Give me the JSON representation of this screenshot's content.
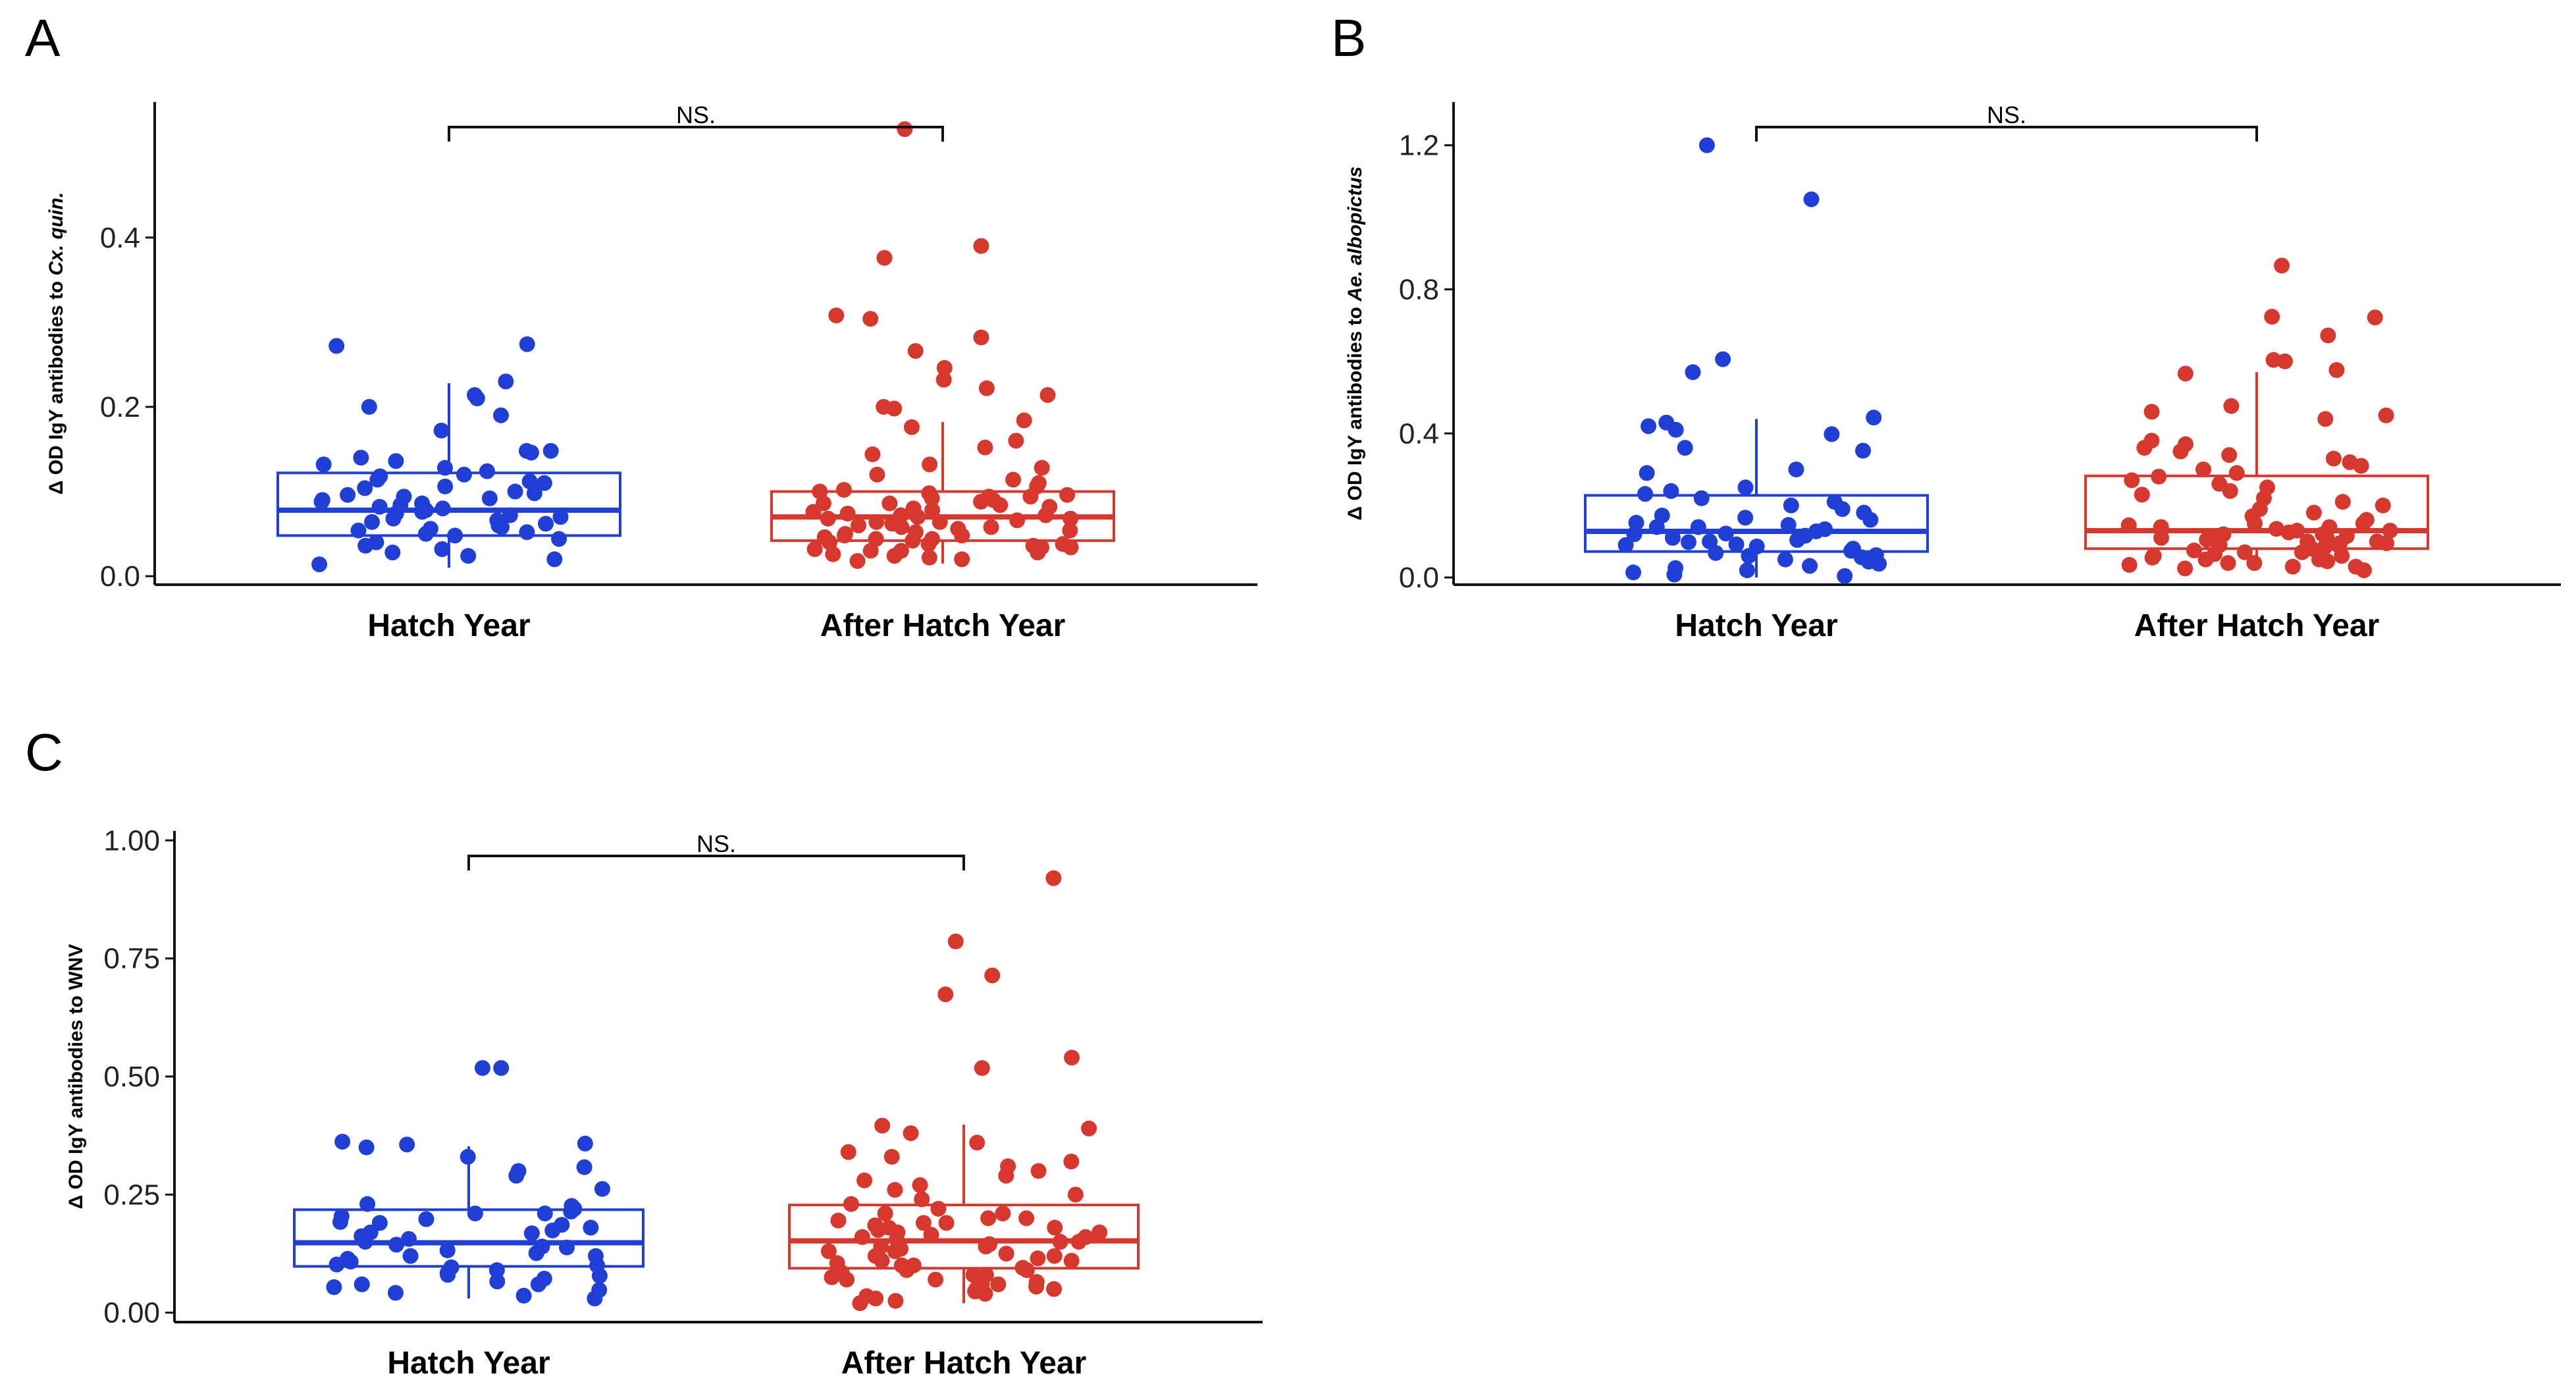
{
  "figure": {
    "panels": [
      {
        "letter": "A",
        "ylabel_parts": [
          {
            "text": "Δ OD IgY antibodies to ",
            "italic": false
          },
          {
            "text": "Cx. quin.",
            "italic": true
          }
        ],
        "sig_label": "NS.",
        "yticks": [
          "0.0",
          "0.2",
          "0.4"
        ]
      },
      {
        "letter": "B",
        "ylabel_parts": [
          {
            "text": "Δ OD IgY antibodies to ",
            "italic": false
          },
          {
            "text": "Ae. albopictus",
            "italic": true
          }
        ],
        "sig_label": "NS.",
        "yticks": [
          "0.0",
          "0.4",
          "0.8",
          "1.2"
        ]
      },
      {
        "letter": "C",
        "ylabel_parts": [
          {
            "text": "Δ OD IgY antibodies to WNV",
            "italic": false
          }
        ],
        "sig_label": "NS.",
        "yticks": [
          "0.00",
          "0.25",
          "0.50",
          "0.75",
          "1.00"
        ]
      }
    ]
  },
  "chart_data": [
    {
      "type": "box",
      "categories": [
        "Hatch Year",
        "After Hatch Year"
      ],
      "ylabel": "Δ OD IgY antibodies to Cx. quin.",
      "ylim": [
        -0.01,
        0.56
      ],
      "yticks": [
        0.0,
        0.2,
        0.4
      ],
      "annotation": "NS.",
      "colors": {
        "Hatch Year": "#1f3fd6",
        "After Hatch Year": "#d6382e"
      },
      "boxes": [
        {
          "category": "Hatch Year",
          "whisker_low": 0.01,
          "q1": 0.048,
          "median": 0.078,
          "q3": 0.122,
          "whisker_high": 0.228
        },
        {
          "category": "After Hatch Year",
          "whisker_low": 0.015,
          "q1": 0.042,
          "median": 0.07,
          "q3": 0.1,
          "whisker_high": 0.182
        }
      ],
      "points": [
        {
          "category": "Hatch Year",
          "values": [
            0.272,
            0.274,
            0.23,
            0.214,
            0.21,
            0.2,
            0.19,
            0.172,
            0.148,
            0.148,
            0.146,
            0.14,
            0.136,
            0.132,
            0.128,
            0.124,
            0.12,
            0.118,
            0.114,
            0.112,
            0.11,
            0.106,
            0.104,
            0.1,
            0.098,
            0.096,
            0.094,
            0.092,
            0.09,
            0.088,
            0.086,
            0.084,
            0.082,
            0.08,
            0.078,
            0.076,
            0.074,
            0.072,
            0.07,
            0.068,
            0.066,
            0.064,
            0.062,
            0.06,
            0.058,
            0.056,
            0.054,
            0.052,
            0.05,
            0.048,
            0.044,
            0.04,
            0.036,
            0.032,
            0.028,
            0.024,
            0.02,
            0.014
          ]
        },
        {
          "category": "After Hatch Year",
          "values": [
            0.528,
            0.39,
            0.376,
            0.308,
            0.304,
            0.282,
            0.266,
            0.246,
            0.232,
            0.222,
            0.214,
            0.2,
            0.198,
            0.184,
            0.176,
            0.16,
            0.152,
            0.144,
            0.132,
            0.128,
            0.12,
            0.114,
            0.11,
            0.106,
            0.102,
            0.1,
            0.098,
            0.096,
            0.094,
            0.092,
            0.09,
            0.088,
            0.086,
            0.084,
            0.082,
            0.08,
            0.078,
            0.076,
            0.074,
            0.072,
            0.07,
            0.068,
            0.066,
            0.064,
            0.062,
            0.06,
            0.058,
            0.056,
            0.054,
            0.052,
            0.05,
            0.048,
            0.046,
            0.044,
            0.042,
            0.04,
            0.038,
            0.036,
            0.034,
            0.032,
            0.03,
            0.028,
            0.026,
            0.024,
            0.022,
            0.02,
            0.018,
            0.068,
            0.072,
            0.058,
            0.048,
            0.038,
            0.03,
            0.086,
            0.094,
            0.064,
            0.044,
            0.034
          ]
        }
      ]
    },
    {
      "type": "box",
      "categories": [
        "Hatch Year",
        "After Hatch Year"
      ],
      "ylabel": "Δ OD IgY antibodies to Ae. albopictus",
      "ylim": [
        -0.02,
        1.32
      ],
      "yticks": [
        0.0,
        0.4,
        0.8,
        1.2
      ],
      "annotation": "NS.",
      "colors": {
        "Hatch Year": "#1f3fd6",
        "After Hatch Year": "#d6382e"
      },
      "boxes": [
        {
          "category": "Hatch Year",
          "whisker_low": 0.0,
          "q1": 0.072,
          "median": 0.128,
          "q3": 0.228,
          "whisker_high": 0.44
        },
        {
          "category": "After Hatch Year",
          "whisker_low": 0.02,
          "q1": 0.08,
          "median": 0.13,
          "q3": 0.282,
          "whisker_high": 0.57
        }
      ],
      "points": [
        {
          "category": "Hatch Year",
          "values": [
            1.2,
            1.05,
            0.606,
            0.57,
            0.444,
            0.43,
            0.42,
            0.41,
            0.398,
            0.36,
            0.352,
            0.3,
            0.29,
            0.25,
            0.24,
            0.232,
            0.22,
            0.21,
            0.2,
            0.19,
            0.18,
            0.172,
            0.166,
            0.16,
            0.152,
            0.146,
            0.14,
            0.134,
            0.128,
            0.122,
            0.116,
            0.11,
            0.104,
            0.098,
            0.092,
            0.086,
            0.08,
            0.074,
            0.068,
            0.062,
            0.056,
            0.05,
            0.044,
            0.038,
            0.032,
            0.026,
            0.02,
            0.014,
            0.008,
            0.004,
            0.12,
            0.1,
            0.06,
            0.14,
            0.09
          ]
        },
        {
          "category": "After Hatch Year",
          "values": [
            0.866,
            0.724,
            0.722,
            0.672,
            0.604,
            0.6,
            0.576,
            0.566,
            0.476,
            0.46,
            0.45,
            0.44,
            0.38,
            0.37,
            0.36,
            0.35,
            0.34,
            0.33,
            0.32,
            0.31,
            0.3,
            0.29,
            0.28,
            0.27,
            0.26,
            0.25,
            0.24,
            0.23,
            0.22,
            0.21,
            0.2,
            0.19,
            0.18,
            0.17,
            0.16,
            0.15,
            0.145,
            0.14,
            0.135,
            0.13,
            0.125,
            0.12,
            0.115,
            0.11,
            0.105,
            0.1,
            0.095,
            0.09,
            0.085,
            0.08,
            0.075,
            0.07,
            0.065,
            0.06,
            0.055,
            0.05,
            0.045,
            0.04,
            0.035,
            0.03,
            0.025,
            0.02,
            0.11,
            0.12,
            0.09,
            0.08,
            0.07,
            0.06,
            0.05,
            0.14,
            0.1,
            0.13,
            0.06,
            0.04,
            0.03,
            0.15,
            0.105,
            0.095
          ]
        }
      ]
    },
    {
      "type": "box",
      "categories": [
        "Hatch Year",
        "After Hatch Year"
      ],
      "ylabel": "Δ OD IgY antibodies to WNV",
      "ylim": [
        -0.02,
        1.02
      ],
      "yticks": [
        0.0,
        0.25,
        0.5,
        0.75,
        1.0
      ],
      "annotation": "NS.",
      "colors": {
        "Hatch Year": "#1f3fd6",
        "After Hatch Year": "#d6382e"
      },
      "boxes": [
        {
          "category": "Hatch Year",
          "whisker_low": 0.03,
          "q1": 0.098,
          "median": 0.148,
          "q3": 0.218,
          "whisker_high": 0.352
        },
        {
          "category": "After Hatch Year",
          "whisker_low": 0.02,
          "q1": 0.094,
          "median": 0.152,
          "q3": 0.228,
          "whisker_high": 0.398
        }
      ],
      "points": [
        {
          "category": "Hatch Year",
          "values": [
            0.518,
            0.518,
            0.362,
            0.358,
            0.356,
            0.35,
            0.33,
            0.308,
            0.3,
            0.29,
            0.262,
            0.23,
            0.226,
            0.22,
            0.214,
            0.21,
            0.204,
            0.198,
            0.192,
            0.186,
            0.18,
            0.174,
            0.168,
            0.162,
            0.156,
            0.15,
            0.144,
            0.138,
            0.132,
            0.126,
            0.12,
            0.114,
            0.108,
            0.102,
            0.096,
            0.09,
            0.084,
            0.078,
            0.072,
            0.066,
            0.06,
            0.054,
            0.048,
            0.042,
            0.036,
            0.03,
            0.14,
            0.12,
            0.1,
            0.17,
            0.19,
            0.08,
            0.06,
            0.21
          ]
        },
        {
          "category": "After Hatch Year",
          "values": [
            0.92,
            0.786,
            0.714,
            0.674,
            0.54,
            0.518,
            0.396,
            0.39,
            0.38,
            0.36,
            0.34,
            0.33,
            0.32,
            0.31,
            0.3,
            0.29,
            0.28,
            0.27,
            0.26,
            0.25,
            0.24,
            0.23,
            0.22,
            0.21,
            0.2,
            0.195,
            0.19,
            0.185,
            0.18,
            0.175,
            0.17,
            0.165,
            0.16,
            0.155,
            0.15,
            0.145,
            0.14,
            0.135,
            0.13,
            0.125,
            0.12,
            0.115,
            0.11,
            0.105,
            0.1,
            0.095,
            0.09,
            0.085,
            0.08,
            0.075,
            0.07,
            0.065,
            0.06,
            0.055,
            0.05,
            0.045,
            0.04,
            0.035,
            0.03,
            0.025,
            0.02,
            0.16,
            0.14,
            0.12,
            0.1,
            0.18,
            0.2,
            0.06,
            0.08,
            0.11,
            0.13,
            0.15,
            0.17,
            0.09,
            0.07,
            0.05,
            0.19,
            0.21
          ]
        }
      ]
    }
  ]
}
